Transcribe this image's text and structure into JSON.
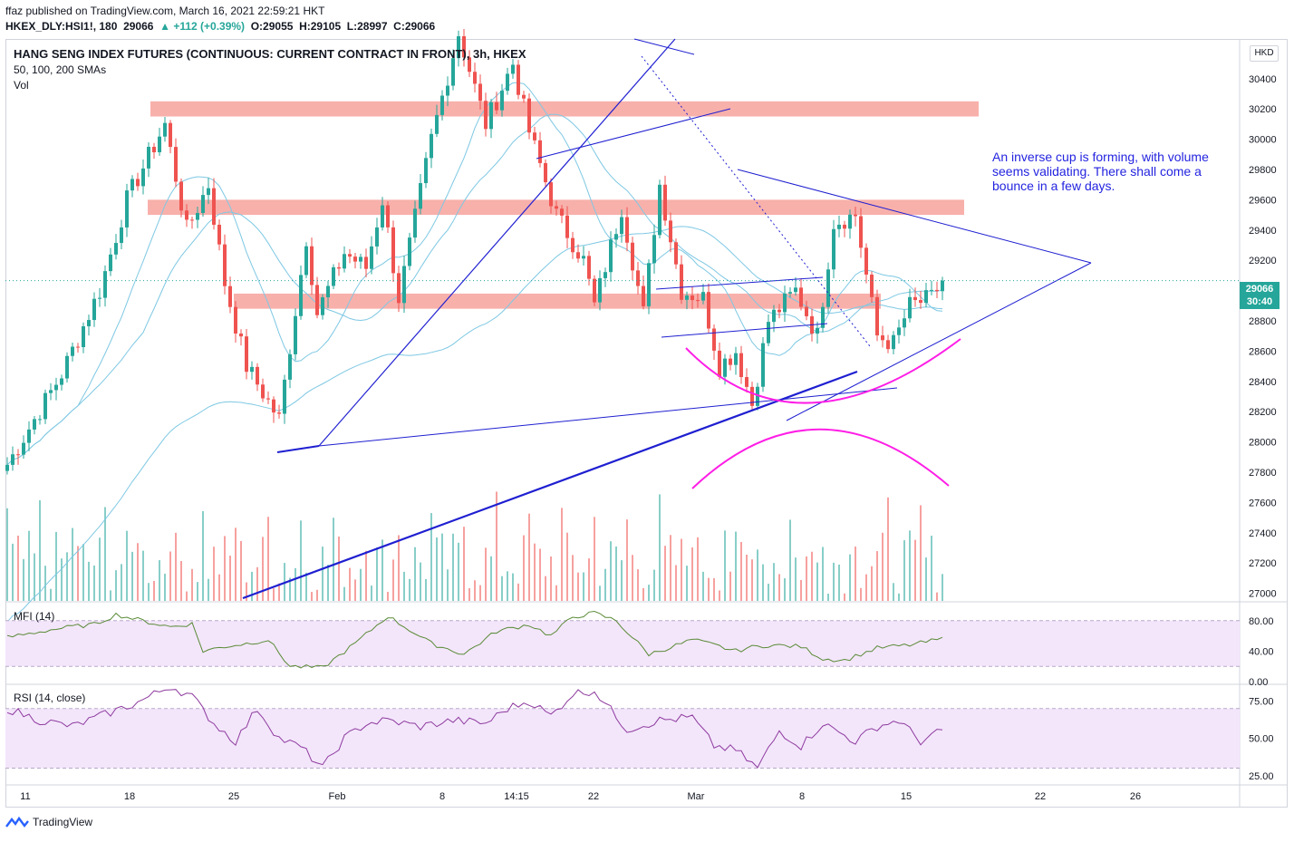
{
  "header": {
    "publisher": "ffaz published on TradingView.com, March 16, 2021 22:59:21 HKT",
    "symbol": "HKEX_DLY:HSI1!, 180",
    "last": "29066",
    "change": "▲ +112 (+0.39%)",
    "open": "O:29055",
    "high": "H:29105",
    "low": "L:28997",
    "close": "C:29066"
  },
  "panel": {
    "title": "HANG SENG INDEX FUTURES (CONTINUOUS: CURRENT CONTRACT IN FRONT), 3h, HKEX",
    "sma_label": "50, 100, 200 SMAs",
    "vol_label": "Vol",
    "currency": "HKD",
    "price_tag_value": "29066",
    "price_tag_countdown": "30:40"
  },
  "annotation": "An inverse cup is forming, with volume seems validating. There shall come a bounce in a few days.",
  "indicators": {
    "mfi_label": "MFI (14)",
    "rsi_label": "RSI (14, close)"
  },
  "footer": {
    "brand": "TradingView"
  },
  "colors": {
    "up": "#26a69a",
    "down": "#ef5350",
    "sma": "#7ec8e3",
    "trendline": "#1f1fd1",
    "cup": "#ff1ee6",
    "zone": "#f7a7a2",
    "mfi_line": "#5a8a36",
    "rsi_line": "#8e3a9e",
    "band": "#f3e6fb"
  },
  "chart_data": [
    {
      "type": "candlestick",
      "title": "HANG SENG INDEX FUTURES (CONTINUOUS: CURRENT CONTRACT IN FRONT), 3h, HKEX",
      "ylim": [
        26950,
        30650
      ],
      "yticks": [
        27000,
        27200,
        27400,
        27600,
        27800,
        28000,
        28200,
        28400,
        28600,
        28800,
        29200,
        29400,
        29600,
        29800,
        30000,
        30200,
        30400
      ],
      "xticks": [
        "11",
        "18",
        "25",
        "Feb",
        "8",
        "14:15",
        "22",
        "Mar",
        "8",
        "15",
        "22",
        "26"
      ],
      "anchors_x": [
        0,
        10,
        17,
        22,
        29,
        33,
        37,
        40,
        44,
        50,
        55,
        57,
        62,
        66,
        69,
        72,
        78,
        83,
        88,
        93,
        96,
        101,
        106,
        108,
        113,
        117,
        120,
        124,
        128,
        131,
        134,
        137,
        140,
        145,
        149,
        152,
        156,
        160,
        163,
        166,
        170,
        172
      ],
      "anchors_close": [
        27850,
        28450,
        29000,
        29600,
        30100,
        29400,
        29700,
        29050,
        28500,
        28150,
        29350,
        28850,
        29250,
        29150,
        29600,
        28950,
        30000,
        30700,
        30100,
        30500,
        30050,
        29500,
        29200,
        28900,
        29550,
        28850,
        29700,
        29000,
        28950,
        28500,
        28600,
        28250,
        28800,
        29000,
        28700,
        29450,
        29500,
        28700,
        28650,
        28900,
        28950,
        29066
      ],
      "last_close": 29066,
      "horizontal_zones": [
        [
          30150,
          30250
        ],
        [
          29500,
          29600
        ],
        [
          28880,
          28980
        ]
      ],
      "sma_periods": [
        50,
        100,
        200
      ]
    },
    {
      "type": "line",
      "title": "MFI (14)",
      "ylim": [
        0,
        100
      ],
      "yticks": [
        80,
        40,
        0
      ],
      "band": [
        20,
        80
      ],
      "anchors_x": [
        0,
        8,
        12,
        16,
        20,
        26,
        30,
        34,
        36,
        40,
        44,
        48,
        52,
        58,
        64,
        70,
        78,
        84,
        90,
        96,
        100,
        104,
        108,
        112,
        118,
        122,
        126,
        130,
        134,
        136,
        140,
        146,
        150,
        154,
        160,
        166,
        172
      ],
      "anchors_y": [
        58,
        68,
        72,
        75,
        88,
        78,
        72,
        76,
        40,
        46,
        50,
        55,
        20,
        18,
        50,
        86,
        50,
        36,
        66,
        75,
        60,
        85,
        90,
        80,
        36,
        45,
        55,
        48,
        40,
        44,
        48,
        46,
        30,
        28,
        44,
        48,
        56
      ]
    },
    {
      "type": "line",
      "title": "RSI (14, close)",
      "ylim": [
        20,
        85
      ],
      "yticks": [
        75,
        50,
        25
      ],
      "band": [
        30,
        70
      ],
      "anchors_x": [
        0,
        6,
        12,
        18,
        24,
        30,
        34,
        38,
        42,
        46,
        50,
        54,
        58,
        62,
        66,
        70,
        76,
        82,
        88,
        92,
        96,
        100,
        104,
        108,
        114,
        120,
        126,
        130,
        134,
        138,
        142,
        146,
        150,
        156,
        160,
        164,
        168,
        172
      ],
      "anchors_y": [
        70,
        62,
        58,
        66,
        74,
        85,
        78,
        60,
        48,
        70,
        50,
        44,
        30,
        50,
        60,
        62,
        58,
        62,
        60,
        70,
        75,
        65,
        80,
        82,
        56,
        62,
        64,
        45,
        42,
        30,
        55,
        45,
        60,
        48,
        58,
        62,
        48,
        55
      ]
    }
  ]
}
